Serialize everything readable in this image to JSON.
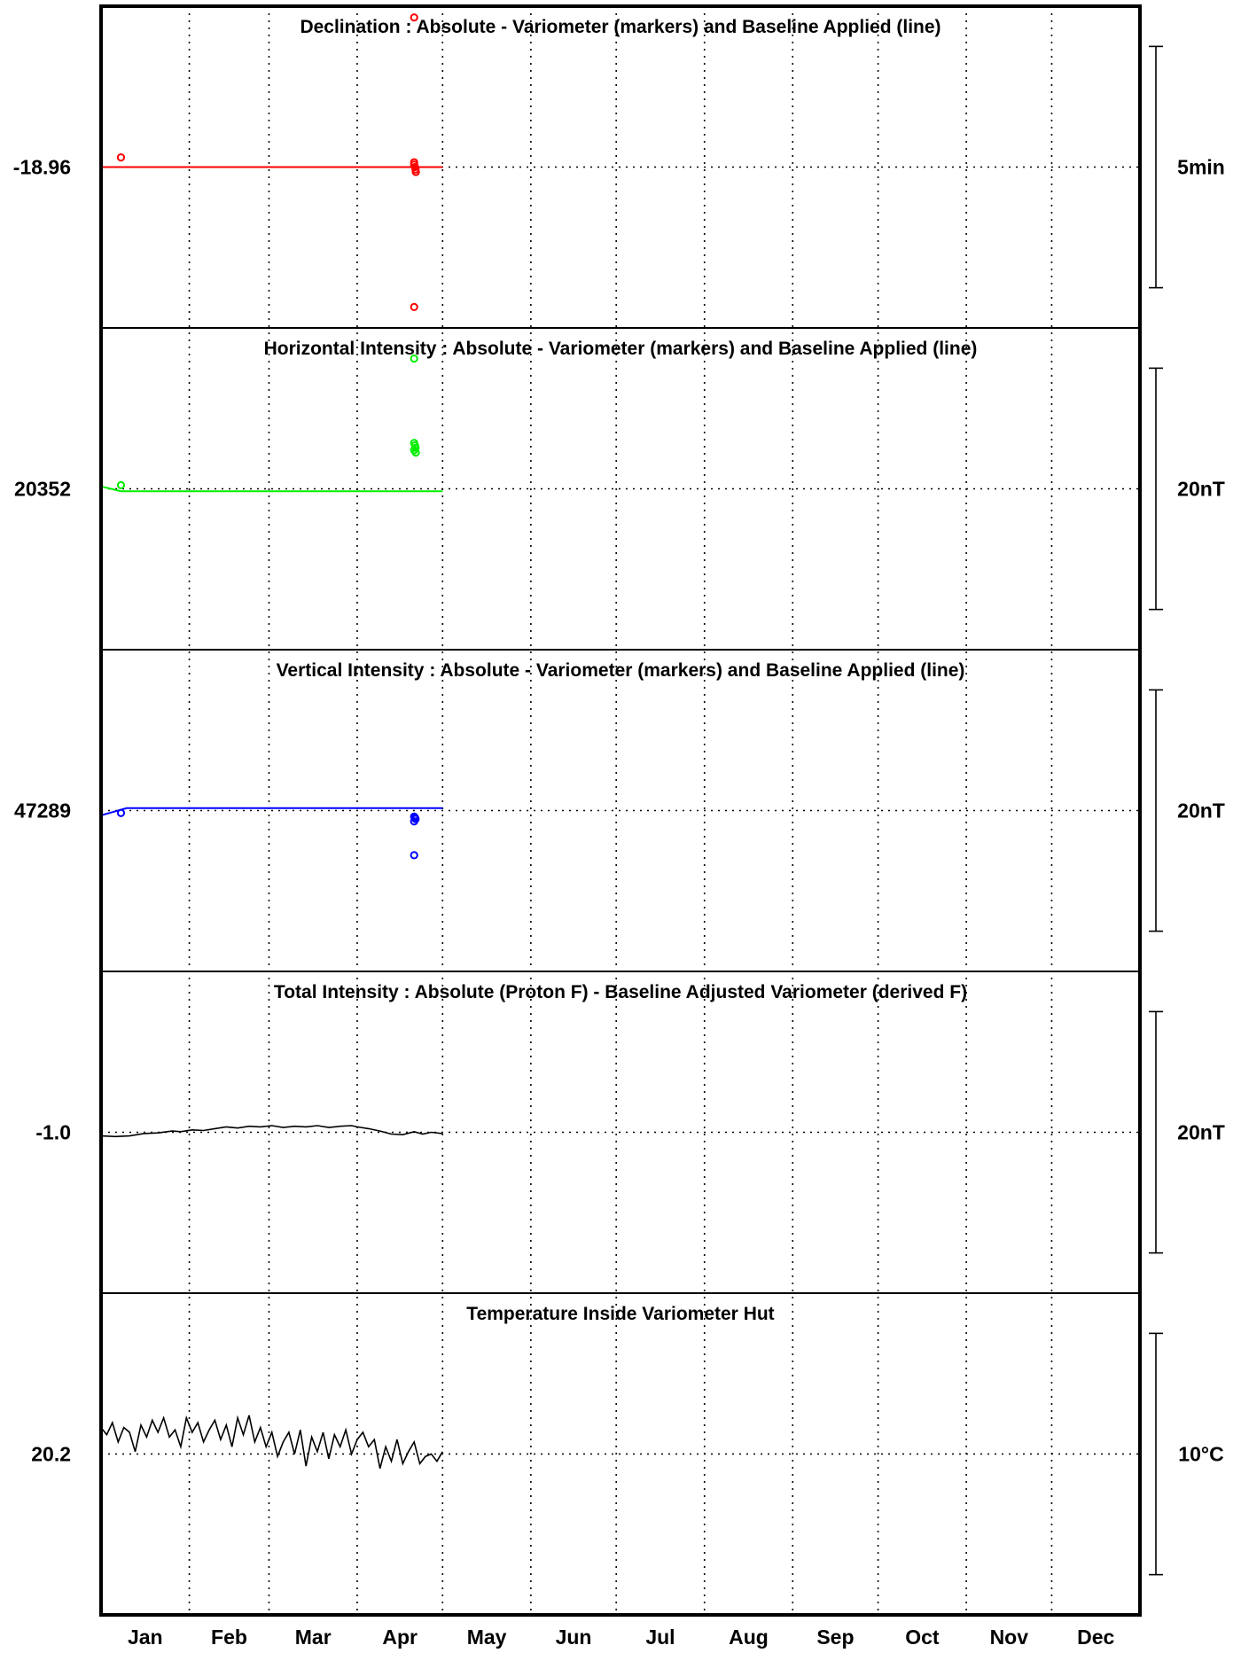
{
  "chart_data": {
    "type": "line",
    "x_axis": {
      "months": [
        "Jan",
        "Feb",
        "Mar",
        "Apr",
        "May",
        "Jun",
        "Jul",
        "Aug",
        "Sep",
        "Oct",
        "Nov",
        "Dec"
      ],
      "range_days": [
        0,
        365
      ],
      "grid": true
    },
    "panels": [
      {
        "id": "declination",
        "title": "Declination : Absolute - Variometer (markers) and Baseline Applied (line)",
        "center_label": "-18.96",
        "center_value": -18.96,
        "scale_label": "5min",
        "half_range": 2.5,
        "units": "minutes",
        "color": "#ff0000",
        "baseline": [
          [
            0,
            0.0
          ],
          [
            120,
            0.0
          ]
        ],
        "markers": [
          [
            7,
            0.2
          ],
          [
            110,
            3.1
          ],
          [
            110,
            0.05
          ],
          [
            110.3,
            0.0
          ],
          [
            110.5,
            -0.05
          ],
          [
            110,
            0.1
          ],
          [
            110.6,
            -0.1
          ],
          [
            110,
            -2.9
          ]
        ]
      },
      {
        "id": "horizontal",
        "title": "Horizontal Intensity : Absolute - Variometer (markers) and Baseline Applied (line)",
        "center_label": "20352",
        "center_value": 20352,
        "scale_label": "20nT",
        "half_range": 10,
        "units": "nT",
        "color": "#00ee00",
        "baseline": [
          [
            0,
            0.2
          ],
          [
            7,
            -0.2
          ],
          [
            120,
            -0.2
          ]
        ],
        "markers": [
          [
            7,
            0.3
          ],
          [
            110,
            10.8
          ],
          [
            110,
            3.8
          ],
          [
            110.3,
            3.6
          ],
          [
            110.5,
            3.4
          ],
          [
            110,
            3.2
          ],
          [
            110.6,
            3.0
          ]
        ]
      },
      {
        "id": "vertical",
        "title": "Vertical Intensity : Absolute - Variometer (markers) and Baseline Applied (line)",
        "center_label": "47289",
        "center_value": 47289,
        "scale_label": "20nT",
        "half_range": 10,
        "units": "nT",
        "color": "#0000ff",
        "baseline": [
          [
            0,
            -0.4
          ],
          [
            9,
            0.2
          ],
          [
            120,
            0.2
          ]
        ],
        "markers": [
          [
            7,
            -0.2
          ],
          [
            110,
            -0.5
          ],
          [
            110.3,
            -0.6
          ],
          [
            110.5,
            -0.7
          ],
          [
            110,
            -0.9
          ],
          [
            110,
            -3.7
          ]
        ]
      },
      {
        "id": "total",
        "title": "Total Intensity : Absolute (Proton F) - Baseline Adjusted Variometer (derived F)",
        "center_label": "-1.0",
        "center_value": -1.0,
        "scale_label": "20nT",
        "half_range": 10,
        "units": "nT",
        "color": "#000000",
        "series": [
          [
            0,
            -0.3
          ],
          [
            5,
            -0.35
          ],
          [
            10,
            -0.3
          ],
          [
            15,
            -0.1
          ],
          [
            20,
            -0.05
          ],
          [
            25,
            0.1
          ],
          [
            28,
            0.05
          ],
          [
            32,
            0.2
          ],
          [
            36,
            0.15
          ],
          [
            40,
            0.3
          ],
          [
            44,
            0.45
          ],
          [
            48,
            0.35
          ],
          [
            52,
            0.5
          ],
          [
            56,
            0.45
          ],
          [
            60,
            0.55
          ],
          [
            64,
            0.4
          ],
          [
            68,
            0.5
          ],
          [
            72,
            0.45
          ],
          [
            76,
            0.55
          ],
          [
            80,
            0.4
          ],
          [
            84,
            0.5
          ],
          [
            88,
            0.55
          ],
          [
            90,
            0.45
          ],
          [
            94,
            0.3
          ],
          [
            98,
            0.1
          ],
          [
            102,
            -0.15
          ],
          [
            106,
            -0.2
          ],
          [
            110,
            0.05
          ],
          [
            113,
            -0.15
          ],
          [
            116,
            0.0
          ],
          [
            120,
            -0.1
          ]
        ]
      },
      {
        "id": "temperature",
        "title": "Temperature Inside Variometer Hut",
        "center_label": "20.2",
        "center_value": 20.2,
        "scale_label": "10°C",
        "half_range": 5,
        "units": "°C",
        "color": "#000000",
        "series": [
          [
            0,
            1.1
          ],
          [
            2,
            0.8
          ],
          [
            4,
            1.3
          ],
          [
            6,
            0.5
          ],
          [
            8,
            1.1
          ],
          [
            10,
            0.9
          ],
          [
            12,
            0.1
          ],
          [
            14,
            1.2
          ],
          [
            16,
            0.7
          ],
          [
            18,
            1.4
          ],
          [
            20,
            0.9
          ],
          [
            22,
            1.5
          ],
          [
            24,
            0.7
          ],
          [
            26,
            1.0
          ],
          [
            28,
            0.3
          ],
          [
            30,
            1.5
          ],
          [
            32,
            0.9
          ],
          [
            34,
            1.3
          ],
          [
            36,
            0.5
          ],
          [
            38,
            1.0
          ],
          [
            40,
            1.4
          ],
          [
            42,
            0.6
          ],
          [
            44,
            1.2
          ],
          [
            46,
            0.3
          ],
          [
            48,
            1.5
          ],
          [
            50,
            0.8
          ],
          [
            52,
            1.6
          ],
          [
            54,
            0.5
          ],
          [
            56,
            1.1
          ],
          [
            58,
            0.3
          ],
          [
            60,
            0.9
          ],
          [
            62,
            -0.1
          ],
          [
            64,
            0.5
          ],
          [
            66,
            0.9
          ],
          [
            68,
            0.0
          ],
          [
            70,
            1.0
          ],
          [
            72,
            -0.5
          ],
          [
            74,
            0.7
          ],
          [
            76,
            0.1
          ],
          [
            78,
            0.9
          ],
          [
            80,
            -0.2
          ],
          [
            82,
            0.8
          ],
          [
            84,
            0.3
          ],
          [
            86,
            1.0
          ],
          [
            88,
            0.0
          ],
          [
            90,
            0.6
          ],
          [
            92,
            0.9
          ],
          [
            94,
            0.3
          ],
          [
            96,
            0.6
          ],
          [
            98,
            -0.6
          ],
          [
            100,
            0.3
          ],
          [
            102,
            -0.3
          ],
          [
            104,
            0.6
          ],
          [
            106,
            -0.4
          ],
          [
            108,
            0.1
          ],
          [
            110,
            0.5
          ],
          [
            112,
            -0.4
          ],
          [
            114,
            -0.1
          ],
          [
            116,
            0.0
          ],
          [
            118,
            -0.3
          ],
          [
            120,
            0.1
          ]
        ]
      }
    ]
  }
}
